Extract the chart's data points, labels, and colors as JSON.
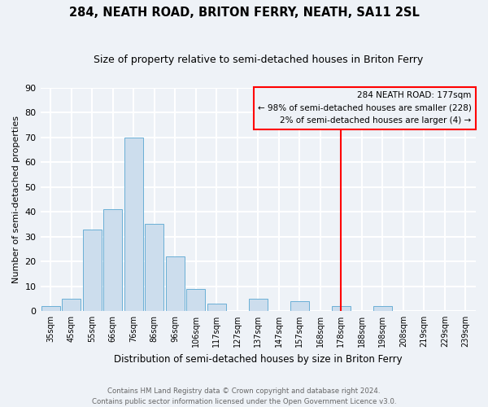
{
  "title": "284, NEATH ROAD, BRITON FERRY, NEATH, SA11 2SL",
  "subtitle": "Size of property relative to semi-detached houses in Briton Ferry",
  "xlabel": "Distribution of semi-detached houses by size in Briton Ferry",
  "ylabel": "Number of semi-detached properties",
  "bar_labels": [
    "35sqm",
    "45sqm",
    "55sqm",
    "66sqm",
    "76sqm",
    "86sqm",
    "96sqm",
    "106sqm",
    "117sqm",
    "127sqm",
    "137sqm",
    "147sqm",
    "157sqm",
    "168sqm",
    "178sqm",
    "188sqm",
    "198sqm",
    "208sqm",
    "219sqm",
    "229sqm",
    "239sqm"
  ],
  "bar_values": [
    2,
    5,
    33,
    41,
    70,
    35,
    22,
    9,
    3,
    0,
    5,
    0,
    4,
    0,
    2,
    0,
    2,
    0,
    0,
    0,
    0
  ],
  "bar_color": "#ccdded",
  "bar_edgecolor": "#6aafd6",
  "vline_x": 14,
  "vline_color": "red",
  "ylim": [
    0,
    90
  ],
  "yticks": [
    0,
    10,
    20,
    30,
    40,
    50,
    60,
    70,
    80,
    90
  ],
  "annotation_title": "284 NEATH ROAD: 177sqm",
  "annotation_line1": "← 98% of semi-detached houses are smaller (228)",
  "annotation_line2": "2% of semi-detached houses are larger (4) →",
  "annotation_box_edgecolor": "red",
  "footer_line1": "Contains HM Land Registry data © Crown copyright and database right 2024.",
  "footer_line2": "Contains public sector information licensed under the Open Government Licence v3.0.",
  "bg_color": "#eef2f7",
  "grid_color": "white",
  "title_fontsize": 10.5,
  "subtitle_fontsize": 9
}
